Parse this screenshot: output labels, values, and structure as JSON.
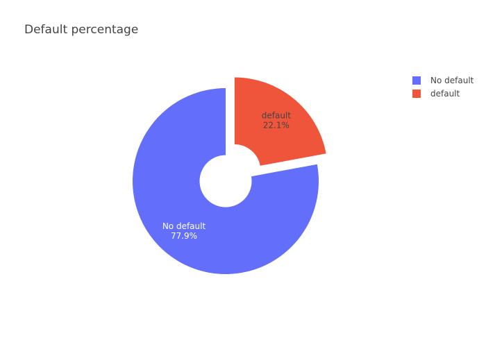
{
  "chart_data": {
    "type": "pie",
    "title": "Default percentage",
    "hole": 0.28,
    "slices": [
      {
        "label": "No default",
        "value": 77.9,
        "color": "#636efa",
        "text_color": "#ffffff",
        "pull": 0
      },
      {
        "label": "default",
        "value": 22.1,
        "color": "#ef553b",
        "text_color": "#444444",
        "pull": 0.15
      }
    ],
    "legend": {
      "position": "top-right",
      "entries": [
        "No default",
        "default"
      ]
    }
  }
}
